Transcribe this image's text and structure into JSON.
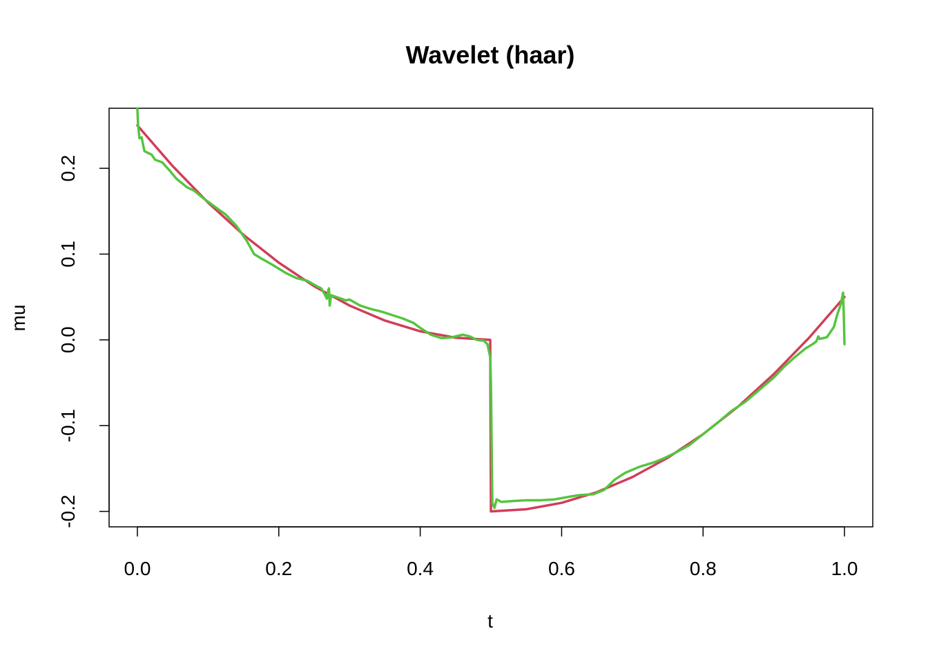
{
  "chart_data": {
    "type": "line",
    "title": "Wavelet (haar)",
    "xlabel": "t",
    "ylabel": "mu",
    "xlim": [
      -0.04,
      1.04
    ],
    "ylim": [
      -0.218,
      0.27
    ],
    "x_ticks": [
      {
        "value": 0.0,
        "label": "0.0"
      },
      {
        "value": 0.2,
        "label": "0.2"
      },
      {
        "value": 0.4,
        "label": "0.4"
      },
      {
        "value": 0.6,
        "label": "0.6"
      },
      {
        "value": 0.8,
        "label": "0.8"
      },
      {
        "value": 1.0,
        "label": "1.0"
      }
    ],
    "y_ticks": [
      {
        "value": -0.2,
        "label": "-0.2"
      },
      {
        "value": -0.1,
        "label": "-0.1"
      },
      {
        "value": 0.0,
        "label": "0.0"
      },
      {
        "value": 0.1,
        "label": "0.1"
      },
      {
        "value": 0.2,
        "label": "0.2"
      }
    ],
    "grid": false,
    "legend": "none",
    "series": [
      {
        "color": "#d13d5a",
        "points": [
          [
            0.0,
            0.25
          ],
          [
            0.05,
            0.2025
          ],
          [
            0.1,
            0.16
          ],
          [
            0.15,
            0.1225
          ],
          [
            0.2,
            0.09
          ],
          [
            0.25,
            0.0625
          ],
          [
            0.3,
            0.04
          ],
          [
            0.35,
            0.0225
          ],
          [
            0.4,
            0.01
          ],
          [
            0.45,
            0.0025
          ],
          [
            0.499,
            0.0
          ],
          [
            0.5,
            -0.2
          ],
          [
            0.55,
            -0.1975
          ],
          [
            0.6,
            -0.19
          ],
          [
            0.65,
            -0.1775
          ],
          [
            0.7,
            -0.16
          ],
          [
            0.75,
            -0.1375
          ],
          [
            0.8,
            -0.11
          ],
          [
            0.85,
            -0.0775
          ],
          [
            0.9,
            -0.04
          ],
          [
            0.95,
            0.0025
          ],
          [
            1.0,
            0.05
          ]
        ]
      },
      {
        "color": "#55c43f",
        "points": [
          [
            0.0,
            0.27
          ],
          [
            0.001,
            0.25
          ],
          [
            0.003,
            0.235
          ],
          [
            0.006,
            0.236
          ],
          [
            0.01,
            0.22
          ],
          [
            0.02,
            0.216
          ],
          [
            0.025,
            0.21
          ],
          [
            0.035,
            0.207
          ],
          [
            0.045,
            0.198
          ],
          [
            0.055,
            0.188
          ],
          [
            0.07,
            0.178
          ],
          [
            0.08,
            0.174
          ],
          [
            0.095,
            0.164
          ],
          [
            0.11,
            0.155
          ],
          [
            0.125,
            0.146
          ],
          [
            0.14,
            0.133
          ],
          [
            0.155,
            0.115
          ],
          [
            0.165,
            0.1
          ],
          [
            0.175,
            0.095
          ],
          [
            0.19,
            0.088
          ],
          [
            0.21,
            0.078
          ],
          [
            0.225,
            0.072
          ],
          [
            0.24,
            0.069
          ],
          [
            0.255,
            0.062
          ],
          [
            0.26,
            0.06
          ],
          [
            0.265,
            0.053
          ],
          [
            0.268,
            0.048
          ],
          [
            0.27,
            0.058
          ],
          [
            0.271,
            0.06
          ],
          [
            0.272,
            0.04
          ],
          [
            0.274,
            0.052
          ],
          [
            0.285,
            0.049
          ],
          [
            0.295,
            0.046
          ],
          [
            0.3,
            0.047
          ],
          [
            0.315,
            0.04
          ],
          [
            0.33,
            0.036
          ],
          [
            0.345,
            0.033
          ],
          [
            0.36,
            0.029
          ],
          [
            0.375,
            0.025
          ],
          [
            0.39,
            0.02
          ],
          [
            0.4,
            0.014
          ],
          [
            0.415,
            0.006
          ],
          [
            0.43,
            0.002
          ],
          [
            0.445,
            0.003
          ],
          [
            0.46,
            0.006
          ],
          [
            0.47,
            0.004
          ],
          [
            0.48,
            0.0
          ],
          [
            0.49,
            -0.001
          ],
          [
            0.495,
            -0.005
          ],
          [
            0.499,
            -0.02
          ],
          [
            0.5,
            -0.05
          ],
          [
            0.502,
            -0.19
          ],
          [
            0.505,
            -0.196
          ],
          [
            0.508,
            -0.186
          ],
          [
            0.515,
            -0.189
          ],
          [
            0.53,
            -0.188
          ],
          [
            0.55,
            -0.187
          ],
          [
            0.57,
            -0.187
          ],
          [
            0.59,
            -0.186
          ],
          [
            0.61,
            -0.183
          ],
          [
            0.625,
            -0.181
          ],
          [
            0.645,
            -0.18
          ],
          [
            0.66,
            -0.175
          ],
          [
            0.675,
            -0.163
          ],
          [
            0.69,
            -0.155
          ],
          [
            0.71,
            -0.148
          ],
          [
            0.73,
            -0.143
          ],
          [
            0.745,
            -0.138
          ],
          [
            0.76,
            -0.132
          ],
          [
            0.78,
            -0.123
          ],
          [
            0.8,
            -0.11
          ],
          [
            0.82,
            -0.097
          ],
          [
            0.84,
            -0.083
          ],
          [
            0.86,
            -0.072
          ],
          [
            0.88,
            -0.058
          ],
          [
            0.9,
            -0.044
          ],
          [
            0.915,
            -0.031
          ],
          [
            0.93,
            -0.02
          ],
          [
            0.945,
            -0.01
          ],
          [
            0.955,
            -0.005
          ],
          [
            0.96,
            -0.002
          ],
          [
            0.963,
            0.004
          ],
          [
            0.965,
            0.001
          ],
          [
            0.975,
            0.003
          ],
          [
            0.985,
            0.015
          ],
          [
            0.99,
            0.03
          ],
          [
            0.995,
            0.042
          ],
          [
            0.998,
            0.055
          ],
          [
            0.999,
            0.03
          ],
          [
            1.0,
            -0.005
          ]
        ]
      }
    ]
  }
}
